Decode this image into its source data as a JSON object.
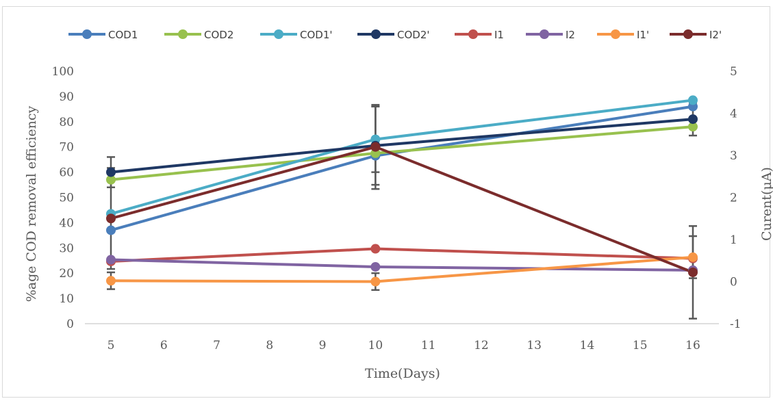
{
  "chart_data": {
    "type": "line",
    "title": "",
    "xlabel": "Time(Days)",
    "ylabel_left": "%age COD removal efficiency",
    "ylabel_right": "Curent(μA)",
    "x_ticks": [
      "5",
      "6",
      "7",
      "8",
      "9",
      "10",
      "11",
      "12",
      "13",
      "14",
      "15",
      "16"
    ],
    "xlim": [
      5,
      16
    ],
    "y_left_ticks": [
      "0",
      "10",
      "20",
      "30",
      "40",
      "50",
      "60",
      "70",
      "80",
      "90",
      "100"
    ],
    "ylim_left": [
      0,
      100
    ],
    "y_right_ticks": [
      "-1",
      "0",
      "1",
      "2",
      "3",
      "4",
      "5"
    ],
    "ylim_right": [
      -1,
      5
    ],
    "grid": false,
    "legend_position": "top",
    "x": [
      5,
      10,
      16
    ],
    "series": [
      {
        "name": "COD1",
        "axis": "left",
        "color": "#4a7ebb",
        "values": [
          37,
          66.5,
          86
        ],
        "error": [
          0,
          0,
          0
        ]
      },
      {
        "name": "COD2",
        "axis": "left",
        "color": "#98c14e",
        "values": [
          57,
          67.5,
          78
        ],
        "error": [
          0,
          0,
          0
        ]
      },
      {
        "name": "COD1'",
        "axis": "left",
        "color": "#4bacc6",
        "values": [
          43.5,
          73,
          88.5
        ],
        "error": [
          0,
          13,
          0
        ]
      },
      {
        "name": "COD2'",
        "axis": "left",
        "color": "#1f3864",
        "values": [
          60,
          70.5,
          81
        ],
        "error": [
          6,
          15.5,
          6.5
        ]
      },
      {
        "name": "I1",
        "axis": "right",
        "color": "#c0504d",
        "values": [
          0.48,
          0.78,
          0.55
        ],
        "error": [
          0,
          0,
          0
        ]
      },
      {
        "name": "I2",
        "axis": "right",
        "color": "#8064a2",
        "values": [
          0.52,
          0.35,
          0.27
        ],
        "error": [
          0,
          0,
          0
        ]
      },
      {
        "name": "I1'",
        "axis": "right",
        "color": "#f79646",
        "values": [
          0.02,
          0.0,
          0.58
        ],
        "error": [
          0.2,
          0.2,
          0.5
        ]
      },
      {
        "name": "I2'",
        "axis": "right",
        "color": "#7b2c2c",
        "values": [
          1.5,
          3.2,
          0.22
        ],
        "error": [
          1.2,
          1.0,
          1.1
        ]
      }
    ]
  }
}
